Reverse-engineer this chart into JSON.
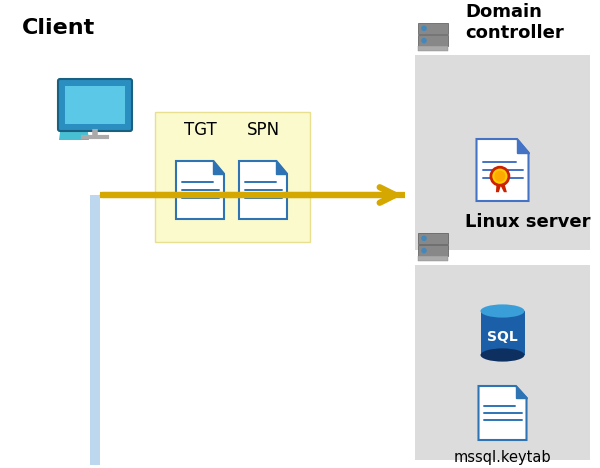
{
  "bg_color": "#ffffff",
  "client_label": "Client",
  "domain_label": "Domain\ncontroller",
  "linux_label": "Linux server",
  "tgt_label": "TGT",
  "spn_label": "SPN",
  "keytab_label": "mssql.keytab",
  "arrow_color": "#D4A800",
  "tgt_spn_box_color": "#FAFACC",
  "tgt_spn_box_edge": "#E8E090",
  "domain_panel_color": "#DCDCDC",
  "linux_panel_color": "#DCDCDC",
  "client_line_color": "#BDD7EE",
  "doc_blue": "#2E74B5",
  "doc_fill": "#FFFFFF",
  "sql_blue_body": "#1a5fa8",
  "sql_blue_top": "#3a9fd8",
  "sql_blue_bot": "#0d3060",
  "sql_text": "SQL",
  "server_body": "#888888",
  "server_bot": "#aaaaaa",
  "server_btn": "#4488bb",
  "cert_red": "#cc2200",
  "cert_yellow": "#ffcc00",
  "cert_doc_edge": "#4472C4"
}
